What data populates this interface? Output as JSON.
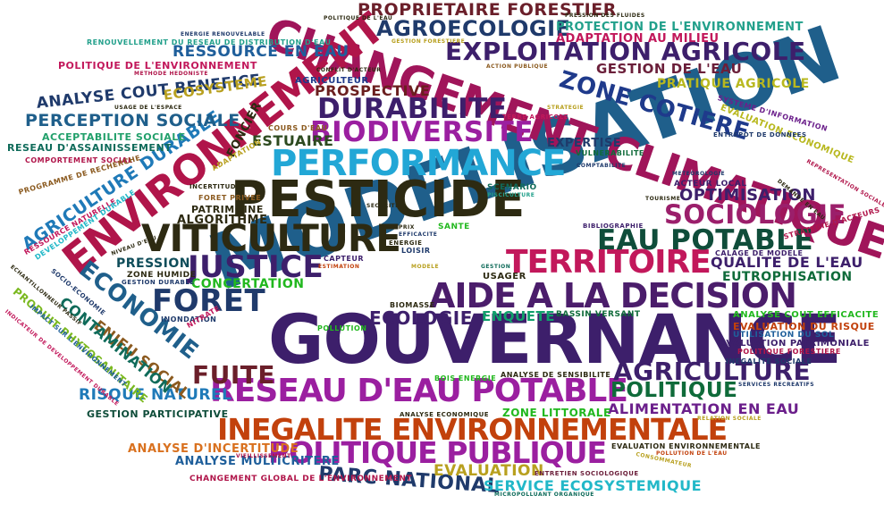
{
  "words": [
    {
      "text": "MODELISATION",
      "color": "#1f5f8b"
    },
    {
      "text": "GOUVERNANCE",
      "color": "#3d1f6b"
    },
    {
      "text": "PESTICIDE",
      "color": "#2d2a12"
    },
    {
      "text": "CHANGEMENT CLIMATIQUE",
      "color": "#a0155a"
    },
    {
      "text": "ENVIRONNEMENT",
      "color": "#b0154a"
    },
    {
      "text": "VITICULTURE",
      "color": "#2d2a12"
    },
    {
      "text": "INEGALITE ENVIRONNEMENTALE",
      "color": "#c2410c"
    },
    {
      "text": "PERFORMANCE",
      "color": "#22a7d6"
    },
    {
      "text": "AIDE A LA DECISION",
      "color": "#4b1d6b"
    },
    {
      "text": "RESEAU D'EAU POTABLE",
      "color": "#9b1fa0"
    },
    {
      "text": "POLITIQUE PUBLIQUE",
      "color": "#9b1fa0"
    },
    {
      "text": "TERRITOIRE",
      "color": "#c2185b"
    },
    {
      "text": "EXPLOITATION AGRICOLE",
      "color": "#3d1f6b"
    },
    {
      "text": "JUSTICE",
      "color": "#3d1f6b"
    },
    {
      "text": "EAU POTABLE",
      "color": "#0f4d3a"
    },
    {
      "text": "BIODIVERSITE",
      "color": "#9b1fa0"
    },
    {
      "text": "SOCIOLOGIE",
      "color": "#9b1f6b"
    },
    {
      "text": "FORET",
      "color": "#1f3a6b"
    },
    {
      "text": "DURABILITE",
      "color": "#3d1f6b"
    },
    {
      "text": "AGRICULTURE",
      "color": "#3d1f6b"
    },
    {
      "text": "ZONE COTIERE",
      "color": "#1f3a8b"
    },
    {
      "text": "ECONOMIE",
      "color": "#1f5f8b"
    },
    {
      "text": "AGROECOLOGIE",
      "color": "#1f3a6b"
    },
    {
      "text": "PROPRIETAIRE FORESTIER",
      "color": "#6b1f2a"
    },
    {
      "text": "FUITE",
      "color": "#6b1f2a"
    },
    {
      "text": "POLITIQUE",
      "color": "#0f6b3a"
    },
    {
      "text": "PARC NATIONAL",
      "color": "#1f3a6b"
    },
    {
      "text": "AGRICULTURE DURABLE",
      "color": "#1f7ab8"
    },
    {
      "text": "RESSOURCE EN EAU",
      "color": "#1f5f9b"
    },
    {
      "text": "ANALYSE COUT BENEFICE",
      "color": "#1f3a6b"
    },
    {
      "text": "ALIMENTATION EN EAU",
      "color": "#6b1f8b"
    },
    {
      "text": "RISQUE NATUREL",
      "color": "#1f7ab8"
    },
    {
      "text": "PERCEPTION SOCIALE",
      "color": "#1f5f8b"
    },
    {
      "text": "OPTIMISATION",
      "color": "#3d1f6b"
    },
    {
      "text": "QUALITE DE L'EAU",
      "color": "#3d1f6b"
    },
    {
      "text": "ENJEU SOCIAL",
      "color": "#8b5a1f"
    },
    {
      "text": "CONTAMINATION",
      "color": "#0f6b5a"
    },
    {
      "text": "ECOLOGIE",
      "color": "#3d1f6b"
    },
    {
      "text": "EVALUATION",
      "color": "#b8a01f"
    },
    {
      "text": "SERVICE ECOSYSTEMIQUE",
      "color": "#22b8c8"
    },
    {
      "text": "PRESSION",
      "color": "#0f4d5a"
    },
    {
      "text": "GESTION DE L'EAU",
      "color": "#6b1f3a"
    },
    {
      "text": "PROSPECTIVE",
      "color": "#6b1f1f"
    },
    {
      "text": "ESTUAIRE",
      "color": "#2d4a1f"
    },
    {
      "text": "ENQUETE",
      "color": "#0fa06b"
    },
    {
      "text": "EUTROPHISATION",
      "color": "#0f6b3a"
    },
    {
      "text": "PRATIQUE AGRICOLE",
      "color": "#b8b81f"
    },
    {
      "text": "PROTECTION DE L'ENVIRONNEMENT",
      "color": "#22a08b"
    },
    {
      "text": "ADAPTATION AU MILIEU",
      "color": "#c2185b"
    },
    {
      "text": "ECOSYSTEME",
      "color": "#b8a01f"
    },
    {
      "text": "CONCERTATION",
      "color": "#22b81f"
    },
    {
      "text": "ANALYSE D'INCERTITUDE",
      "color": "#d9711f"
    },
    {
      "text": "ANALYSE MULTICRITERE",
      "color": "#1f5f9b"
    },
    {
      "text": "GESTION PARTICIPATIVE",
      "color": "#0f4d3a"
    },
    {
      "text": "FONCIER",
      "color": "#2d2a12"
    },
    {
      "text": "POLITIQUE DE L'ENVIRONNEMENT",
      "color": "#c2185b"
    },
    {
      "text": "ACCEPTABILITE SOCIALE",
      "color": "#22a06b"
    },
    {
      "text": "RESEAU D'ASSAINISSEMENT",
      "color": "#0f6b5a"
    },
    {
      "text": "PRODUIT PHYTOSANITAIRE",
      "color": "#7ab81f"
    },
    {
      "text": "EXPERTISE",
      "color": "#1f3a6b"
    },
    {
      "text": "ALGORITHME",
      "color": "#2d2a12"
    },
    {
      "text": "EVALUATION DU RISQUE",
      "color": "#c2410c"
    },
    {
      "text": "ANALYSE COUT EFFICACITE",
      "color": "#22b81f"
    },
    {
      "text": "ZONE LITTORALE",
      "color": "#22b81f"
    },
    {
      "text": "CHANGEMENT GLOBAL DE L'ENVIRONNEMENT",
      "color": "#b0154a"
    },
    {
      "text": "AGRICULTEUR",
      "color": "#1f3a8b"
    },
    {
      "text": "PATRIMOINE",
      "color": "#2d2a12"
    },
    {
      "text": "BASSIN VERSANT",
      "color": "#0f6b3a"
    },
    {
      "text": "EVALUATION PATRIMONIALE",
      "color": "#3d1f6b"
    },
    {
      "text": "EVALUATION ECONOMIQUE",
      "color": "#b8b81f"
    },
    {
      "text": "SYSTEME D'INFORMATION",
      "color": "#6b1f8b"
    },
    {
      "text": "INONDATION",
      "color": "#1f3a6b"
    },
    {
      "text": "ZONE HUMIDE",
      "color": "#2d2a12"
    },
    {
      "text": "COMPORTEMENT SOCIAL",
      "color": "#b0154a"
    },
    {
      "text": "PROGRAMME DE RECHERCHE",
      "color": "#8b5a1f"
    },
    {
      "text": "RESSOURCE NATURELLE",
      "color": "#c2185b"
    },
    {
      "text": "DEVELOPPEMENT DURABLE",
      "color": "#22b8c8"
    },
    {
      "text": "SCENARIO",
      "color": "#0f6b5a"
    },
    {
      "text": "SANTE",
      "color": "#22b81f"
    },
    {
      "text": "ACTEUR LOCAL",
      "color": "#3d1f6b"
    },
    {
      "text": "USAGER",
      "color": "#2d2a12"
    },
    {
      "text": "POLLUTION",
      "color": "#22b81f"
    },
    {
      "text": "BIOMASSE",
      "color": "#2d2a12"
    },
    {
      "text": "NITRATE",
      "color": "#c2185b"
    },
    {
      "text": "CALAGE DE MODELE",
      "color": "#3d1f6b"
    },
    {
      "text": "STRATEGIE D'ACTEURS",
      "color": "#b0154a"
    },
    {
      "text": "INEGALITE SOCIALE",
      "color": "#1f3a6b"
    },
    {
      "text": "UTILISATION DU SOL",
      "color": "#1f5f9b"
    },
    {
      "text": "POLITIQUE FORESTIERE",
      "color": "#b0154a"
    },
    {
      "text": "VULNERABILITE",
      "color": "#0f6b3a"
    },
    {
      "text": "COURS D'EAU",
      "color": "#8b5a1f"
    },
    {
      "text": "FORET PRIVEE",
      "color": "#8b5a1f"
    },
    {
      "text": "CAPTEUR",
      "color": "#3d1f6b"
    },
    {
      "text": "LOISIR",
      "color": "#1f3a6b"
    },
    {
      "text": "ENERGIE",
      "color": "#2d2a12"
    },
    {
      "text": "IMPACT SUR L'ENVIRONNEMENT",
      "color": "#1f5f9b"
    },
    {
      "text": "ANALYSE DE SENSIBILITE",
      "color": "#2d2a12"
    },
    {
      "text": "BOIS ENERGIE",
      "color": "#22b81f"
    },
    {
      "text": "ANALYSE ECONOMIQUE",
      "color": "#2d2a12"
    },
    {
      "text": "RELATION SOCIALE",
      "color": "#b8a01f"
    },
    {
      "text": "MICROPOLLUANT ORGANIQUE",
      "color": "#0f6b5a"
    },
    {
      "text": "EVALUATION ENVIRONNEMENTALE",
      "color": "#2d2a12"
    },
    {
      "text": "ENTRETIEN SOCIOLOGIQUE",
      "color": "#6b1f3a"
    },
    {
      "text": "POLLUTION DE L'EAU",
      "color": "#c2410c"
    },
    {
      "text": "VIEILLISSEMENT",
      "color": "#b0154a"
    },
    {
      "text": "ADAPTATION",
      "color": "#b8a01f"
    },
    {
      "text": "INCERTITUDE",
      "color": "#2d2a12"
    },
    {
      "text": "SOCIO-ECONOMIE",
      "color": "#1f3a6b"
    },
    {
      "text": "ECHANTILLONNEUR PASSIF",
      "color": "#2d2a12"
    },
    {
      "text": "INDICATEUR DE DEVELOPPEMENT DURABLE",
      "color": "#c2185b"
    },
    {
      "text": "USAGE DE L'ESPACE",
      "color": "#2d2a12"
    },
    {
      "text": "GESTION DURABLE",
      "color": "#1f3a6b"
    },
    {
      "text": "ENERGIE RENOUVELABLE",
      "color": "#1f3a6b"
    },
    {
      "text": "RENOUVELLEMENT DU RESEAU DE DISTRIBUTION D'EAU",
      "color": "#22a08b"
    },
    {
      "text": "METHODE HEDONISTE",
      "color": "#b0154a"
    },
    {
      "text": "GESTION FORESTIERE",
      "color": "#b8a01f"
    },
    {
      "text": "CONFLIT D'ACTEUR",
      "color": "#2d2a12"
    },
    {
      "text": "ACTION PUBLIQUE",
      "color": "#8b5a1f"
    },
    {
      "text": "PRESSION DES FLUIDES",
      "color": "#2d2a12"
    },
    {
      "text": "POLITIQUE DE L'EAU",
      "color": "#2d2a12"
    },
    {
      "text": "TERRE AGRICOLE",
      "color": "#c2185b"
    },
    {
      "text": "COMPTABILITE",
      "color": "#1f3a6b"
    },
    {
      "text": "ENTREPOT DE DONNEES",
      "color": "#1f3a6b"
    },
    {
      "text": "TOURISME",
      "color": "#2d2a12"
    },
    {
      "text": "BIBLIOGRAPHIE",
      "color": "#3d1f6b"
    },
    {
      "text": "SERVICES RECREATIFS",
      "color": "#1f3a6b"
    },
    {
      "text": "CONSOMMATEUR",
      "color": "#b8a01f"
    },
    {
      "text": "SECURITE",
      "color": "#2d2a12"
    },
    {
      "text": "METEOROLOGIE",
      "color": "#1f3a6b"
    },
    {
      "text": "PISCICULTURE",
      "color": "#22a08b"
    },
    {
      "text": "DEMANDE EN EAU",
      "color": "#2d2a12"
    },
    {
      "text": "NIVEAU D'EAU",
      "color": "#2d2a12"
    },
    {
      "text": "ESTIMATION",
      "color": "#c2410c"
    },
    {
      "text": "MODELE",
      "color": "#b8a01f"
    },
    {
      "text": "GESTION",
      "color": "#0f6b5a"
    },
    {
      "text": "PRIX",
      "color": "#2d2a12"
    },
    {
      "text": "EFFICACITE",
      "color": "#1f3a6b"
    },
    {
      "text": "REPRESENTATION SOCIALE",
      "color": "#b0154a"
    },
    {
      "text": "STRATEGIE",
      "color": "#b8a01f"
    }
  ]
}
